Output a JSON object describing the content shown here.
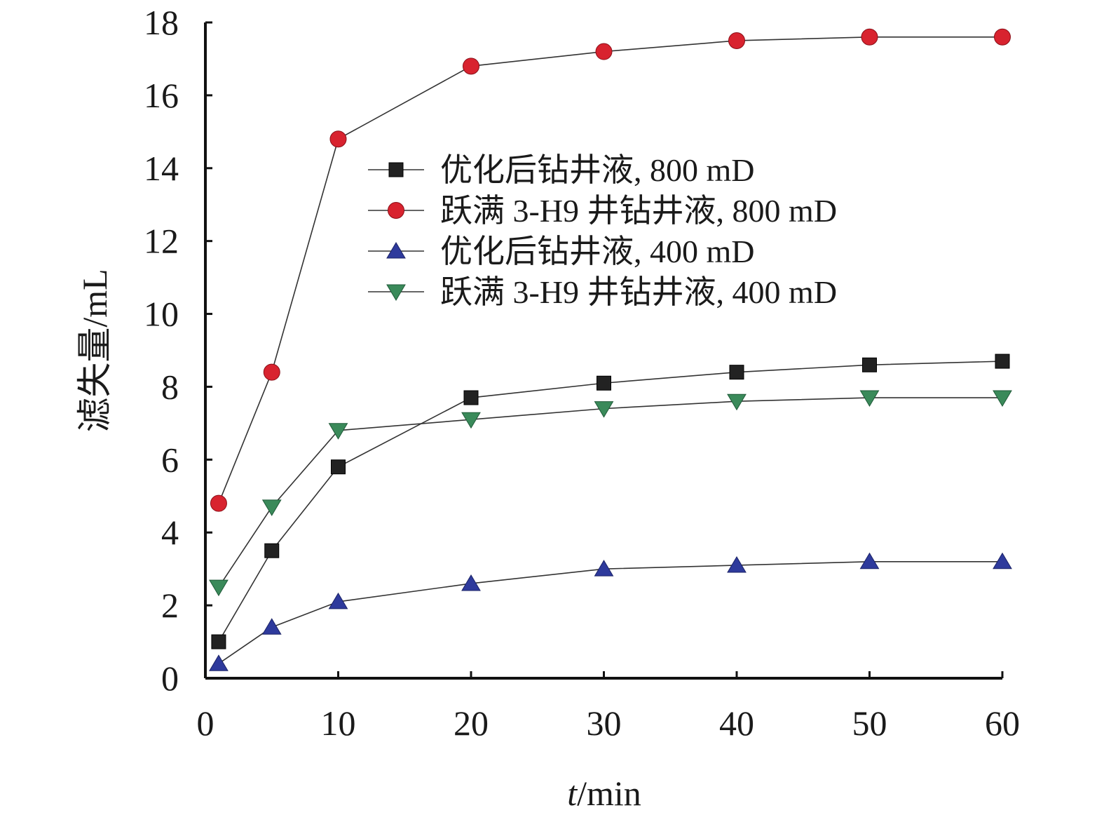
{
  "chart_data": {
    "type": "line",
    "xlabel_italic": "t",
    "xlabel_rest": "/min",
    "ylabel": "滤失量/mL",
    "xlim": [
      0,
      60
    ],
    "ylim": [
      0,
      18
    ],
    "xticks": [
      "0",
      "10",
      "20",
      "30",
      "40",
      "50",
      "60"
    ],
    "yticks": [
      "0",
      "2",
      "4",
      "6",
      "8",
      "10",
      "12",
      "14",
      "16",
      "18"
    ],
    "grid": false,
    "legend_position": "upper-center",
    "series": [
      {
        "name": "优化后钻井液, 800 mD",
        "marker": "square",
        "color": "#222222",
        "x": [
          1,
          5,
          10,
          20,
          30,
          40,
          50,
          60
        ],
        "y": [
          1.0,
          3.5,
          5.8,
          7.7,
          8.1,
          8.4,
          8.6,
          8.7
        ]
      },
      {
        "name": "跃满 3-H9 井钻井液, 800 mD",
        "marker": "circle",
        "color": "#d8232f",
        "x": [
          1,
          5,
          10,
          20,
          30,
          40,
          50,
          60
        ],
        "y": [
          4.8,
          8.4,
          14.8,
          16.8,
          17.2,
          17.5,
          17.6,
          17.6
        ]
      },
      {
        "name": "优化后钻井液, 400 mD",
        "marker": "triangle-up",
        "color": "#2e3a9c",
        "x": [
          1,
          5,
          10,
          20,
          30,
          40,
          50,
          60
        ],
        "y": [
          0.4,
          1.4,
          2.1,
          2.6,
          3.0,
          3.1,
          3.2,
          3.2
        ]
      },
      {
        "name": "跃满 3-H9 井钻井液, 400 mD",
        "marker": "triangle-down",
        "color": "#3a8a5a",
        "x": [
          1,
          5,
          10,
          20,
          30,
          40,
          50,
          60
        ],
        "y": [
          2.5,
          4.7,
          6.8,
          7.1,
          7.4,
          7.6,
          7.7,
          7.7
        ]
      }
    ]
  }
}
